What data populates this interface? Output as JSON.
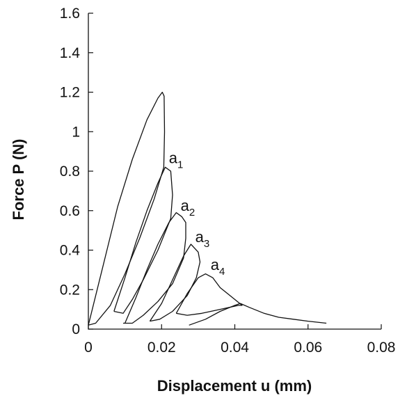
{
  "chart_data": {
    "type": "line",
    "xlabel": "Displacement u (mm)",
    "ylabel": "Force P (N)",
    "xlim": [
      0,
      0.08
    ],
    "ylim": [
      0,
      1.6
    ],
    "xticks": [
      0,
      0.02,
      0.04,
      0.06,
      0.08
    ],
    "xtick_labels": [
      "0",
      "0.02",
      "0.04",
      "0.06",
      "0.08"
    ],
    "yticks": [
      0,
      0.2,
      0.4,
      0.6,
      0.8,
      1,
      1.2,
      1.4,
      1.6
    ],
    "ytick_labels": [
      "0",
      "0.2",
      "0.4",
      "0.6",
      "0.8",
      "1",
      "1.2",
      "1.4",
      "1.6"
    ],
    "grid": false,
    "legend": "none",
    "series": [
      {
        "x": [
          0.0,
          0.004,
          0.008,
          0.012,
          0.016,
          0.019,
          0.0202,
          0.0207,
          0.0208,
          0.0206,
          0.018,
          0.014,
          0.01,
          0.006,
          0.002,
          0.0
        ],
        "y": [
          0.02,
          0.32,
          0.62,
          0.86,
          1.06,
          1.17,
          1.2,
          1.18,
          1.0,
          0.82,
          0.66,
          0.46,
          0.28,
          0.12,
          0.03,
          0.02
        ]
      },
      {
        "x": [
          0.007,
          0.01,
          0.013,
          0.016,
          0.019,
          0.021,
          0.0225,
          0.023,
          0.0225,
          0.019,
          0.015,
          0.012,
          0.0095,
          0.007
        ],
        "y": [
          0.09,
          0.26,
          0.44,
          0.6,
          0.74,
          0.82,
          0.8,
          0.68,
          0.56,
          0.4,
          0.25,
          0.15,
          0.08,
          0.09
        ]
      },
      {
        "x": [
          0.01,
          0.013,
          0.016,
          0.019,
          0.022,
          0.024,
          0.0255,
          0.0266,
          0.0266,
          0.026,
          0.023,
          0.019,
          0.015,
          0.012,
          0.0095
        ],
        "y": [
          0.03,
          0.16,
          0.3,
          0.43,
          0.54,
          0.59,
          0.57,
          0.54,
          0.46,
          0.36,
          0.23,
          0.14,
          0.07,
          0.03,
          0.03
        ]
      },
      {
        "x": [
          0.0168,
          0.02,
          0.023,
          0.026,
          0.028,
          0.03,
          0.0305,
          0.0295,
          0.027,
          0.023,
          0.0195,
          0.0168
        ],
        "y": [
          0.04,
          0.13,
          0.25,
          0.37,
          0.43,
          0.39,
          0.34,
          0.26,
          0.17,
          0.09,
          0.05,
          0.04
        ]
      },
      {
        "x": [
          0.024,
          0.027,
          0.03,
          0.032,
          0.034,
          0.036,
          0.038,
          0.04,
          0.042,
          0.041,
          0.036,
          0.031,
          0.027,
          0.024
        ],
        "y": [
          0.08,
          0.18,
          0.26,
          0.28,
          0.26,
          0.21,
          0.18,
          0.15,
          0.12,
          0.12,
          0.1,
          0.08,
          0.07,
          0.08
        ]
      },
      {
        "x": [
          0.0275,
          0.032,
          0.036,
          0.04,
          0.0415,
          0.044,
          0.048,
          0.052,
          0.056,
          0.06,
          0.065
        ],
        "y": [
          0.02,
          0.05,
          0.09,
          0.12,
          0.13,
          0.11,
          0.08,
          0.06,
          0.05,
          0.04,
          0.03
        ]
      }
    ],
    "annotations": [
      {
        "base": "a",
        "sub": "1",
        "x": 0.022,
        "y": 0.84
      },
      {
        "base": "a",
        "sub": "2",
        "x": 0.0252,
        "y": 0.6
      },
      {
        "base": "a",
        "sub": "3",
        "x": 0.0292,
        "y": 0.44
      },
      {
        "base": "a",
        "sub": "4",
        "x": 0.0334,
        "y": 0.3
      }
    ]
  }
}
